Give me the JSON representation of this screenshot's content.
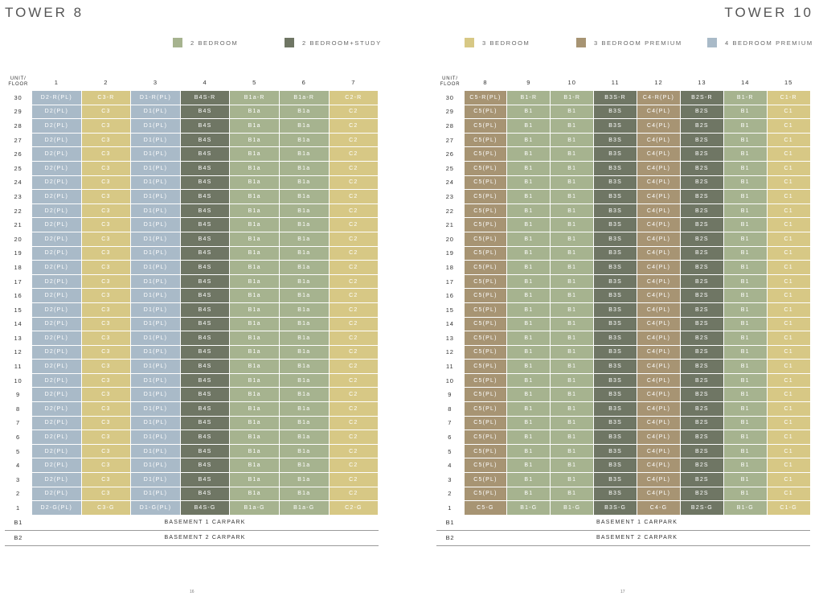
{
  "colors": {
    "2br": "#a6b38f",
    "2brs": "#6f7664",
    "3br": "#d7c885",
    "3brp": "#a79473",
    "4brp": "#a9bac8"
  },
  "left": {
    "title": "TOWER 8",
    "legend": [
      {
        "label": "2 BEDROOM",
        "color_key": "2br"
      },
      {
        "label": "2 BEDROOM+STUDY",
        "color_key": "2brs"
      }
    ],
    "header_label": [
      "UNIT/",
      "FLOOR"
    ],
    "units": [
      "1",
      "2",
      "3",
      "4",
      "5",
      "6",
      "7"
    ],
    "col_types": [
      "4brp",
      "3br",
      "4brp",
      "2brs",
      "2br",
      "2br",
      "3br"
    ],
    "top_row": [
      "D2-R(PL)",
      "C3-R",
      "D1-R(PL)",
      "B4S-R",
      "B1a-R",
      "B1a-R",
      "C2-R"
    ],
    "typical_row": [
      "D2(PL)",
      "C3",
      "D1(PL)",
      "B4S",
      "B1a",
      "B1a",
      "C2"
    ],
    "ground_row": [
      "D2-G(PL)",
      "C3-G",
      "D1-G(PL)",
      "B4S-G",
      "B1a-G",
      "B1a-G",
      "C2-G"
    ],
    "basements": [
      {
        "floor": "B1",
        "label": "BASEMENT 1 CARPARK"
      },
      {
        "floor": "B2",
        "label": "BASEMENT 2 CARPARK"
      }
    ],
    "page_number": "16"
  },
  "right": {
    "title": "TOWER 10",
    "legend": [
      {
        "label": "3 BEDROOM",
        "color_key": "3br"
      },
      {
        "label": "3 BEDROOM PREMIUM",
        "color_key": "3brp"
      },
      {
        "label": "4 BEDROOM PREMIUM",
        "color_key": "4brp"
      }
    ],
    "header_label": [
      "UNIT/",
      "FLOOR"
    ],
    "units": [
      "8",
      "9",
      "10",
      "11",
      "12",
      "13",
      "14",
      "15"
    ],
    "col_types": [
      "3brp",
      "2br",
      "2br",
      "2brs",
      "3brp",
      "2brs",
      "2br",
      "3br"
    ],
    "top_row": [
      "C5-R(PL)",
      "B1-R",
      "B1-R",
      "B3S-R",
      "C4-R(PL)",
      "B2S-R",
      "B1-R",
      "C1-R"
    ],
    "typical_row": [
      "C5(PL)",
      "B1",
      "B1",
      "B3S",
      "C4(PL)",
      "B2S",
      "B1",
      "C1"
    ],
    "ground_row": [
      "C5-G",
      "B1-G",
      "B1-G",
      "B3S-G",
      "C4-G",
      "B2S-G",
      "B1-G",
      "C1-G"
    ],
    "basements": [
      {
        "floor": "B1",
        "label": "BASEMENT 1 CARPARK"
      },
      {
        "floor": "B2",
        "label": "BASEMENT 2 CARPARK"
      }
    ],
    "page_number": "17"
  },
  "floors": [
    "30",
    "29",
    "28",
    "27",
    "26",
    "25",
    "24",
    "23",
    "22",
    "21",
    "20",
    "19",
    "18",
    "17",
    "16",
    "15",
    "14",
    "13",
    "12",
    "11",
    "10",
    "9",
    "8",
    "7",
    "6",
    "5",
    "4",
    "3",
    "2",
    "1"
  ]
}
